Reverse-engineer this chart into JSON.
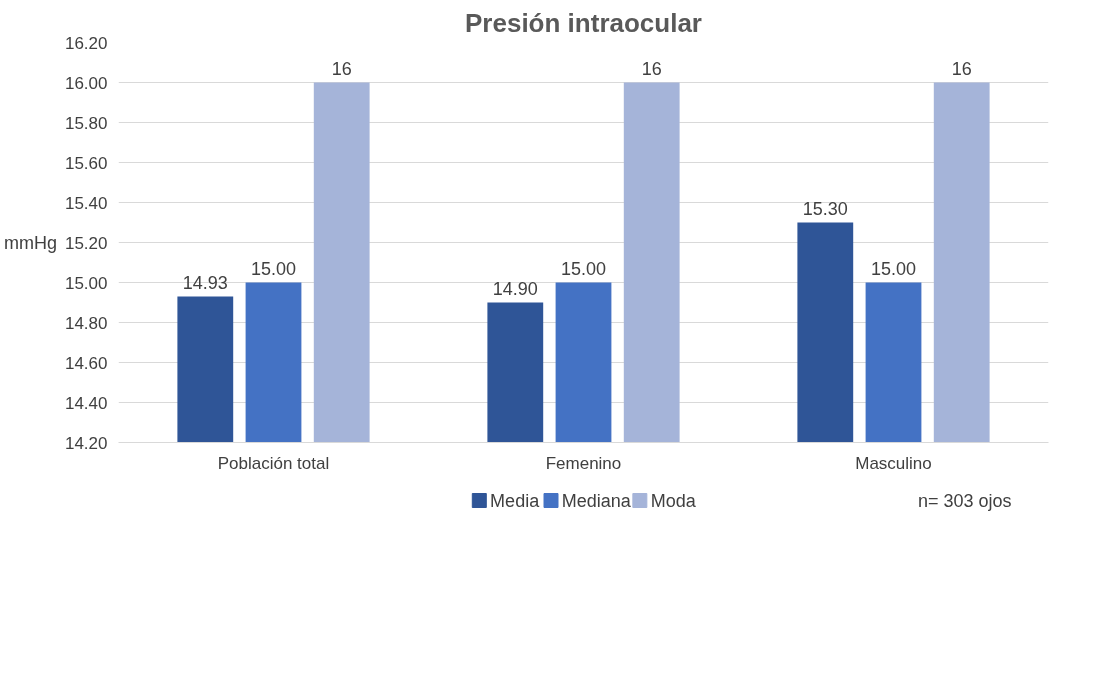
{
  "chart_data": {
    "type": "bar",
    "title": "Presión intraocular",
    "ylabel": "mmHg",
    "categories": [
      "Población total",
      "Femenino",
      "Masculino"
    ],
    "series": [
      {
        "name": "Media",
        "color": "#2f5597",
        "values": [
          14.93,
          14.9,
          15.3
        ],
        "value_labels": [
          "14.93",
          "14.90",
          "15.30"
        ]
      },
      {
        "name": "Mediana",
        "color": "#4472c4",
        "values": [
          15.0,
          15.0,
          15.0
        ],
        "value_labels": [
          "15.00",
          "15.00",
          "15.00"
        ]
      },
      {
        "name": "Moda",
        "color": "#a5b4d9",
        "values": [
          16,
          16,
          16
        ],
        "value_labels": [
          "16",
          "16",
          "16"
        ]
      }
    ],
    "ylim": [
      14.2,
      16.2
    ],
    "yticks": [
      {
        "value": 14.2,
        "label": "14.20"
      },
      {
        "value": 14.4,
        "label": "14.40"
      },
      {
        "value": 14.6,
        "label": "14.60"
      },
      {
        "value": 14.8,
        "label": "14.80"
      },
      {
        "value": 15.0,
        "label": "15.00"
      },
      {
        "value": 15.2,
        "label": "15.20"
      },
      {
        "value": 15.4,
        "label": "15.40"
      },
      {
        "value": 15.6,
        "label": "15.60"
      },
      {
        "value": 15.8,
        "label": "15.80"
      },
      {
        "value": 16.0,
        "label": "16.00"
      },
      {
        "value": 16.2,
        "label": "16.20"
      }
    ],
    "grid": "y",
    "legend": "bottom",
    "annotations": [
      "n= 303 ojos"
    ]
  }
}
